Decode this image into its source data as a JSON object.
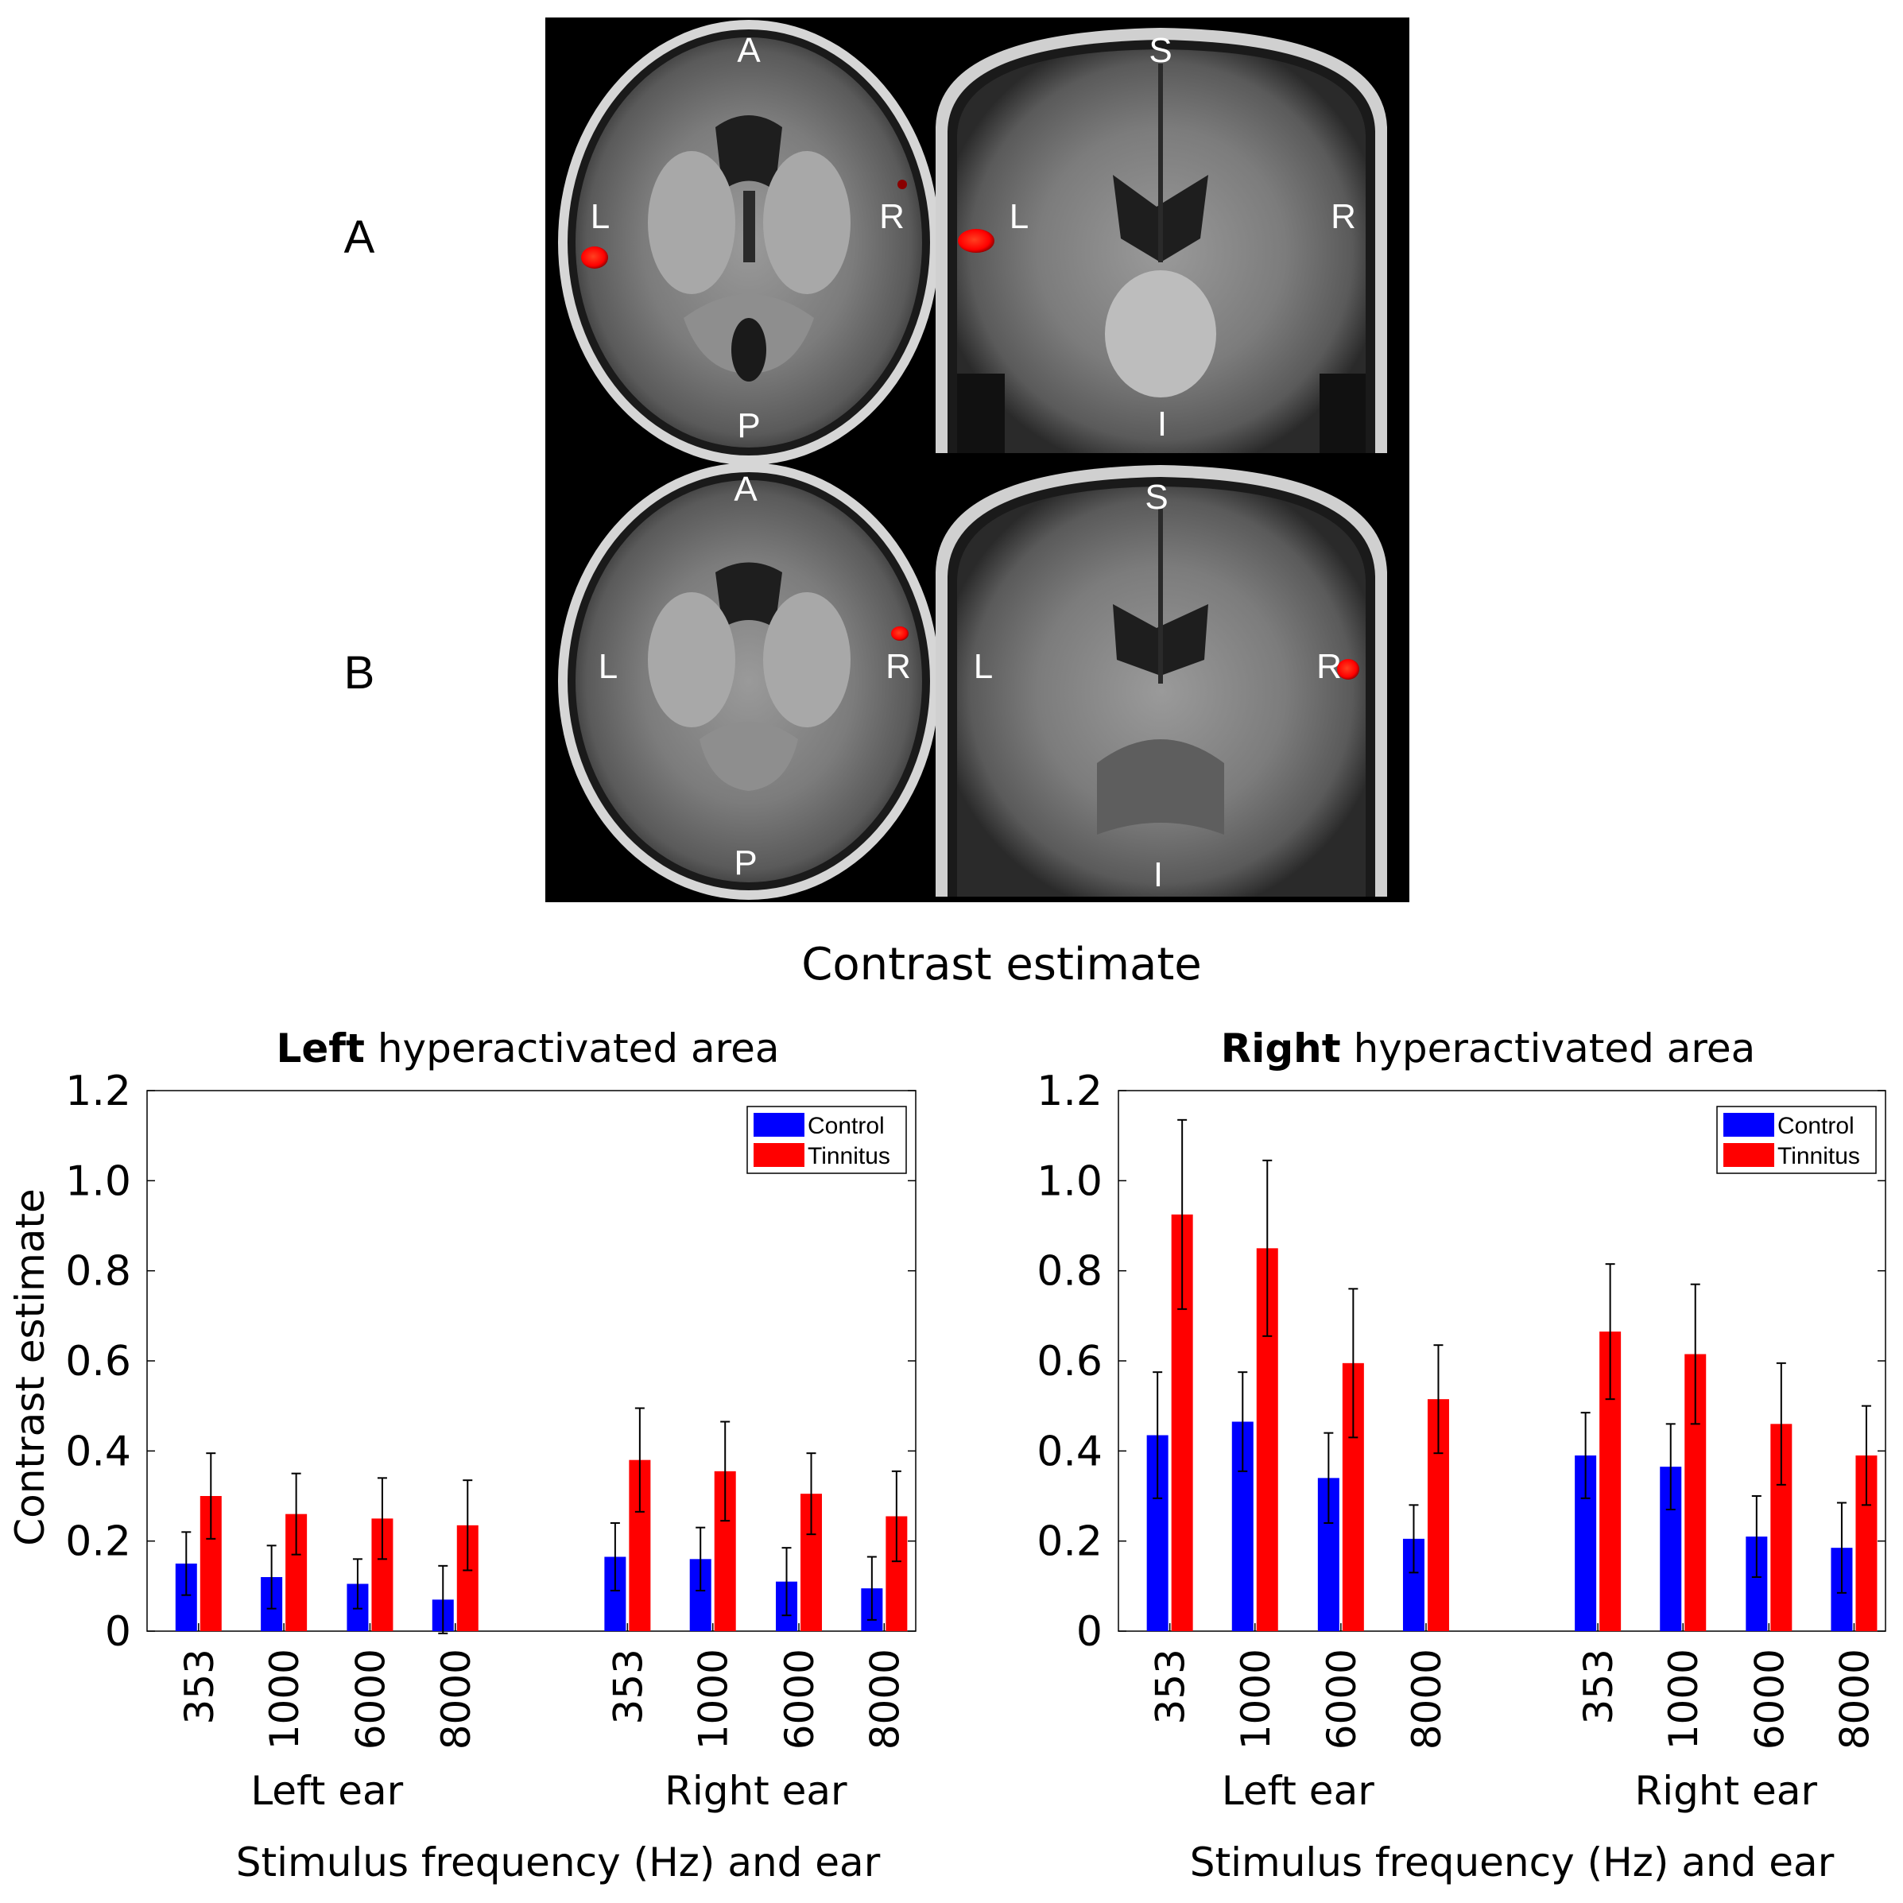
{
  "figure": {
    "panel_labels": [
      "A",
      "B"
    ],
    "section_title": "Contrast estimate"
  },
  "brain_images": {
    "axial_labels": {
      "anterior": "A",
      "posterior": "P",
      "left": "L",
      "right": "R"
    },
    "coronal_labels": {
      "superior": "S",
      "inferior": "I",
      "left": "L",
      "right": "R"
    },
    "activation_color": "#ff1a00"
  },
  "colors": {
    "control": "#0000ff",
    "tinnitus": "#ff0000"
  },
  "chart_data": [
    {
      "type": "bar",
      "title_bold": "Left",
      "title_rest": " hyperactivated area",
      "ylabel": "Contrast estimate",
      "xlabel": "Stimulus frequency (Hz) and ear",
      "ylim": [
        0,
        1.2
      ],
      "yticks": [
        "0",
        "0.2",
        "0.4",
        "0.6",
        "0.8",
        "1.0",
        "1.2"
      ],
      "legend_position": "top-right",
      "groups": [
        {
          "label": "Left ear",
          "categories": [
            "353",
            "1000",
            "6000",
            "8000"
          ]
        },
        {
          "label": "Right ear",
          "categories": [
            "353",
            "1000",
            "6000",
            "8000"
          ]
        }
      ],
      "series": [
        {
          "name": "Control",
          "values": [
            0.15,
            0.12,
            0.105,
            0.07,
            0.165,
            0.16,
            0.11,
            0.095
          ],
          "errors": [
            0.07,
            0.07,
            0.055,
            0.075,
            0.075,
            0.07,
            0.075,
            0.07
          ]
        },
        {
          "name": "Tinnitus",
          "values": [
            0.3,
            0.26,
            0.25,
            0.235,
            0.38,
            0.355,
            0.305,
            0.255
          ],
          "errors": [
            0.095,
            0.09,
            0.09,
            0.1,
            0.115,
            0.11,
            0.09,
            0.1
          ]
        }
      ]
    },
    {
      "type": "bar",
      "title_bold": "Right",
      "title_rest": " hyperactivated area",
      "ylabel": "",
      "xlabel": "Stimulus frequency (Hz) and ear",
      "ylim": [
        0,
        1.2
      ],
      "yticks": [
        "0",
        "0.2",
        "0.4",
        "0.6",
        "0.8",
        "1.0",
        "1.2"
      ],
      "legend_position": "top-right",
      "groups": [
        {
          "label": "Left ear",
          "categories": [
            "353",
            "1000",
            "6000",
            "8000"
          ]
        },
        {
          "label": "Right ear",
          "categories": [
            "353",
            "1000",
            "6000",
            "8000"
          ]
        }
      ],
      "series": [
        {
          "name": "Control",
          "values": [
            0.435,
            0.465,
            0.34,
            0.205,
            0.39,
            0.365,
            0.21,
            0.185
          ],
          "errors": [
            0.14,
            0.11,
            0.1,
            0.075,
            0.095,
            0.095,
            0.09,
            0.1
          ]
        },
        {
          "name": "Tinnitus",
          "values": [
            0.925,
            0.85,
            0.595,
            0.515,
            0.665,
            0.615,
            0.46,
            0.39
          ],
          "errors": [
            0.21,
            0.195,
            0.165,
            0.12,
            0.15,
            0.155,
            0.135,
            0.11
          ]
        }
      ]
    }
  ]
}
